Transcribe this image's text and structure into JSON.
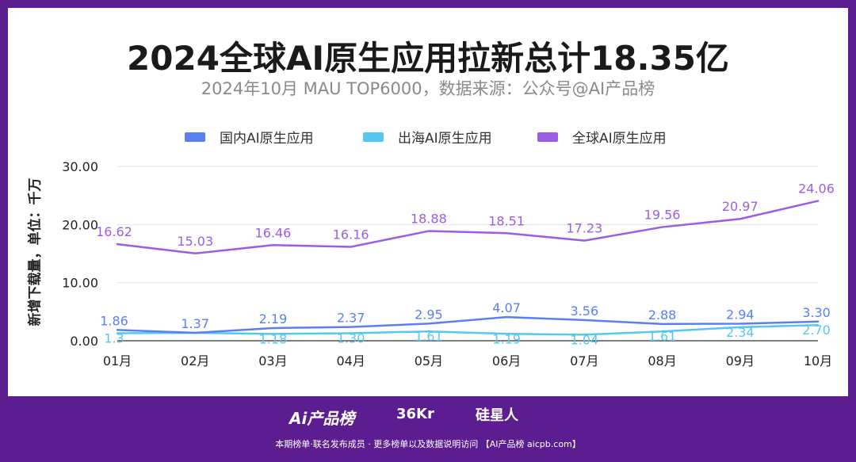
{
  "title": "2024全球AI原生应用拉新总计18.35亿",
  "subtitle": "2024年10月 MAU TOP6000，数据来源：公众号@AI产品榜",
  "footer": {
    "logo_ai": "Ai产品榜",
    "logo_36kr": "36Kr",
    "logo_gxr": "硅星人",
    "text": "本期榜单·联名发布成员 · 更多榜单以及数据说明访问 【AI产品榜 aicpb.com】"
  },
  "chart_data": {
    "type": "line",
    "ylabel": "新增下载量，单位：千万",
    "xlabel": "",
    "ylim": [
      0,
      30
    ],
    "y_ticks": [
      "0.00",
      "10.00",
      "20.00",
      "30.00"
    ],
    "y_tick_values": [
      0,
      10,
      20,
      30
    ],
    "grid": true,
    "legend_position": "top",
    "categories": [
      "01月",
      "02月",
      "03月",
      "04月",
      "05月",
      "06月",
      "07月",
      "08月",
      "09月",
      "10月"
    ],
    "series": [
      {
        "name": "国内AI原生应用",
        "color": "#5b7ff0",
        "values": [
          1.86,
          1.37,
          2.19,
          2.37,
          2.95,
          4.07,
          3.56,
          2.88,
          2.94,
          3.3
        ],
        "labels": [
          "1.86",
          "1.37",
          "2.19",
          "2.37",
          "2.95",
          "4.07",
          "3.56",
          "2.88",
          "2.94",
          "3.30"
        ]
      },
      {
        "name": "出海AI原生应用",
        "color": "#56c8f0",
        "values": [
          1.3,
          1.37,
          1.18,
          1.3,
          1.61,
          1.19,
          1.04,
          1.61,
          2.34,
          2.7
        ],
        "labels": [
          "1.3",
          "",
          "1.18",
          "1.30",
          "1.61",
          "1.19",
          "1.04",
          "1.61",
          "2.34",
          "2.70"
        ]
      },
      {
        "name": "全球AI原生应用",
        "color": "#9b5de5",
        "values": [
          16.62,
          15.03,
          16.46,
          16.16,
          18.88,
          18.51,
          17.23,
          19.56,
          20.97,
          24.06
        ],
        "labels": [
          "16.62",
          "15.03",
          "16.46",
          "16.16",
          "18.88",
          "18.51",
          "17.23",
          "19.56",
          "20.97",
          "24.06"
        ]
      }
    ]
  }
}
